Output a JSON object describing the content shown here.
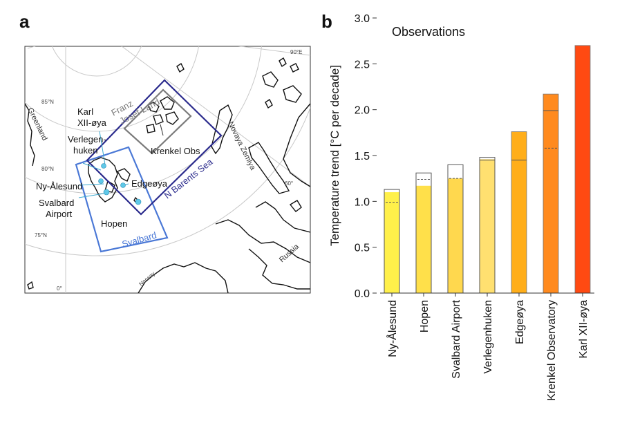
{
  "panel_a": {
    "letter": "a",
    "labels": {
      "greenland": "Greenland",
      "lat85": "85°N",
      "lat80": "80°N",
      "lat75": "75°N",
      "lon90": "90°E",
      "lon0": "0°",
      "lon60": "60°",
      "karl1": "Karl",
      "karl2": "XII-øya",
      "franz1": "Franz",
      "franz2": "Josef Land",
      "verlegen1": "Verlegen-",
      "verlegen2": "huken",
      "krenkel": "Krenkel Obs",
      "novaya": "Novaya Zemlya",
      "edgeoya": "Edgeøya",
      "nbarents": "N Barents Sea",
      "nyalesund": "Ny-Ålesund",
      "svalbard1": "Svalbard",
      "svalbard2": "Airport",
      "hopen": "Hopen",
      "svalbard_box": "Svalbard",
      "norway": "Norway",
      "russia": "Russia"
    },
    "colors": {
      "svalbard_box": "#4a78d6",
      "barents_box": "#2a2a8c",
      "franz_box": "#7a7a7a",
      "station_dot": "#5ec8e8"
    }
  },
  "chart_data": {
    "panel_letter": "b",
    "type": "bar",
    "title": "Observations",
    "ylabel": "Temperature trend [°C per decade]",
    "ylim": [
      0.0,
      3.0
    ],
    "yticks": [
      "0.0",
      "0.5",
      "1.0",
      "1.5",
      "2.0",
      "2.5",
      "3.0"
    ],
    "categories": [
      "Ny-Ålesund",
      "Hopen",
      "Svalbard Airport",
      "Verlegenhuken",
      "Edgeøya",
      "Krenkel Observatory",
      "Karl XII-øya"
    ],
    "values": [
      1.1,
      1.17,
      1.25,
      1.46,
      1.76,
      2.17,
      2.7
    ],
    "outline_values": [
      1.13,
      1.31,
      1.4,
      1.48,
      null,
      null,
      null
    ],
    "solid_line_values": [
      null,
      null,
      null,
      1.45,
      1.45,
      1.99,
      null
    ],
    "dashed_line_values": [
      0.99,
      1.24,
      1.25,
      null,
      null,
      1.58,
      null
    ],
    "colors": [
      "#fff04a",
      "#ffe04a",
      "#ffd84e",
      "#ffe070",
      "#ffae1a",
      "#ff8a1e",
      "#ff4a12"
    ]
  }
}
